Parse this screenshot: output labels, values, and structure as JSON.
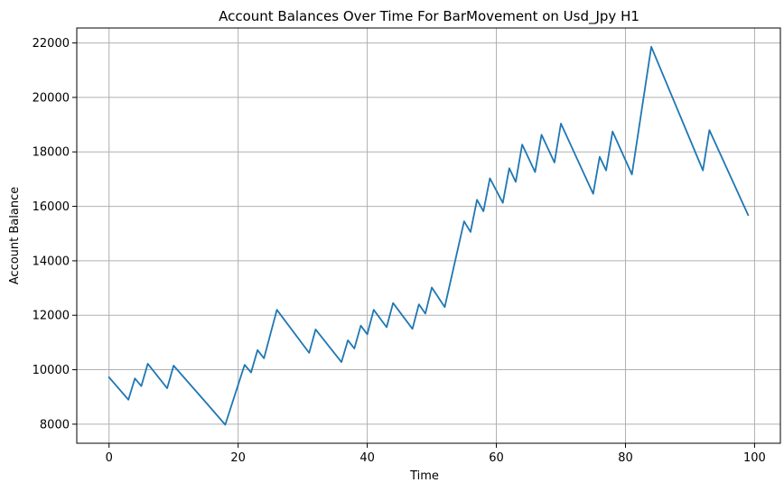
{
  "chart_data": {
    "type": "line",
    "title": "Account Balances Over Time For BarMovement on Usd_Jpy H1",
    "xlabel": "Time",
    "ylabel": "Account Balance",
    "xlim": [
      -5,
      104
    ],
    "ylim": [
      7300,
      22550
    ],
    "xticks": [
      0,
      20,
      40,
      60,
      80,
      100
    ],
    "yticks": [
      8000,
      10000,
      12000,
      14000,
      16000,
      18000,
      20000,
      22000
    ],
    "grid": true,
    "line_color": "#1f77b4",
    "series": [
      {
        "x": [
          0,
          3,
          4,
          5,
          6,
          9,
          10,
          15,
          18,
          21,
          22,
          23,
          24,
          26,
          31,
          32,
          36,
          37,
          38,
          39,
          40,
          41,
          43,
          44,
          47,
          48,
          49,
          50,
          52,
          55,
          56,
          57,
          58,
          59,
          61,
          62,
          63,
          64,
          66,
          67,
          69,
          70,
          75,
          76,
          77,
          78,
          81,
          84,
          92,
          93,
          99
        ],
        "y": [
          9720,
          8900,
          9680,
          9400,
          10220,
          9320,
          10150,
          8800,
          7980,
          10180,
          9900,
          10720,
          10420,
          12200,
          10620,
          11480,
          10280,
          11080,
          10780,
          11620,
          11300,
          12200,
          11560,
          12450,
          11500,
          12400,
          12060,
          13020,
          12300,
          15450,
          15060,
          16240,
          15820,
          17030,
          16130,
          17400,
          16900,
          18270,
          17260,
          18630,
          17610,
          19040,
          16460,
          17820,
          17320,
          18750,
          17170,
          21860,
          17320,
          18800,
          15680
        ]
      }
    ]
  }
}
